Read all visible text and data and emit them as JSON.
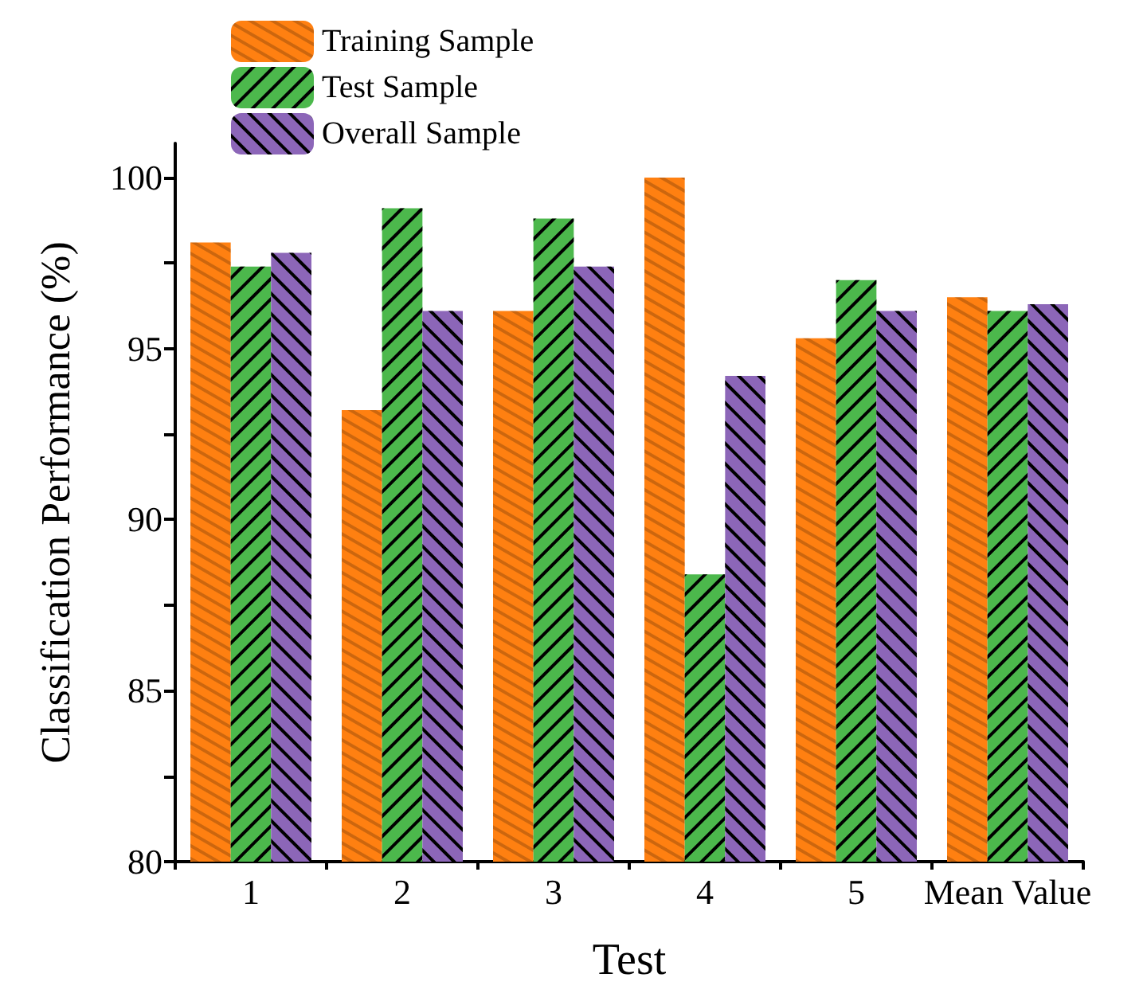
{
  "chart_data": {
    "type": "bar",
    "xlabel": "Test",
    "ylabel": "Classification Performance (%)",
    "categories": [
      "1",
      "2",
      "3",
      "4",
      "5",
      "Mean Value"
    ],
    "series": [
      {
        "name": "Training Sample",
        "color": "#ff8011",
        "values": [
          98.1,
          93.2,
          96.1,
          100,
          95.3,
          96.5
        ]
      },
      {
        "name": "Test Sample",
        "color": "#4cb84c",
        "values": [
          97.4,
          99.1,
          98.8,
          88.4,
          97.0,
          96.1
        ]
      },
      {
        "name": "Overall Sample",
        "color": "#8c66b8",
        "values": [
          97.8,
          96.1,
          97.4,
          94.2,
          96.1,
          96.3
        ]
      }
    ],
    "ylim": [
      80,
      101
    ],
    "yticks": [
      80,
      {
        "value": 82.5,
        "label": null
      },
      85,
      {
        "value": 87.5,
        "label": null
      },
      90,
      {
        "value": 92.5,
        "label": null
      },
      95,
      {
        "value": 97.5,
        "label": null
      },
      100
    ],
    "grid": false,
    "legend": "top"
  }
}
